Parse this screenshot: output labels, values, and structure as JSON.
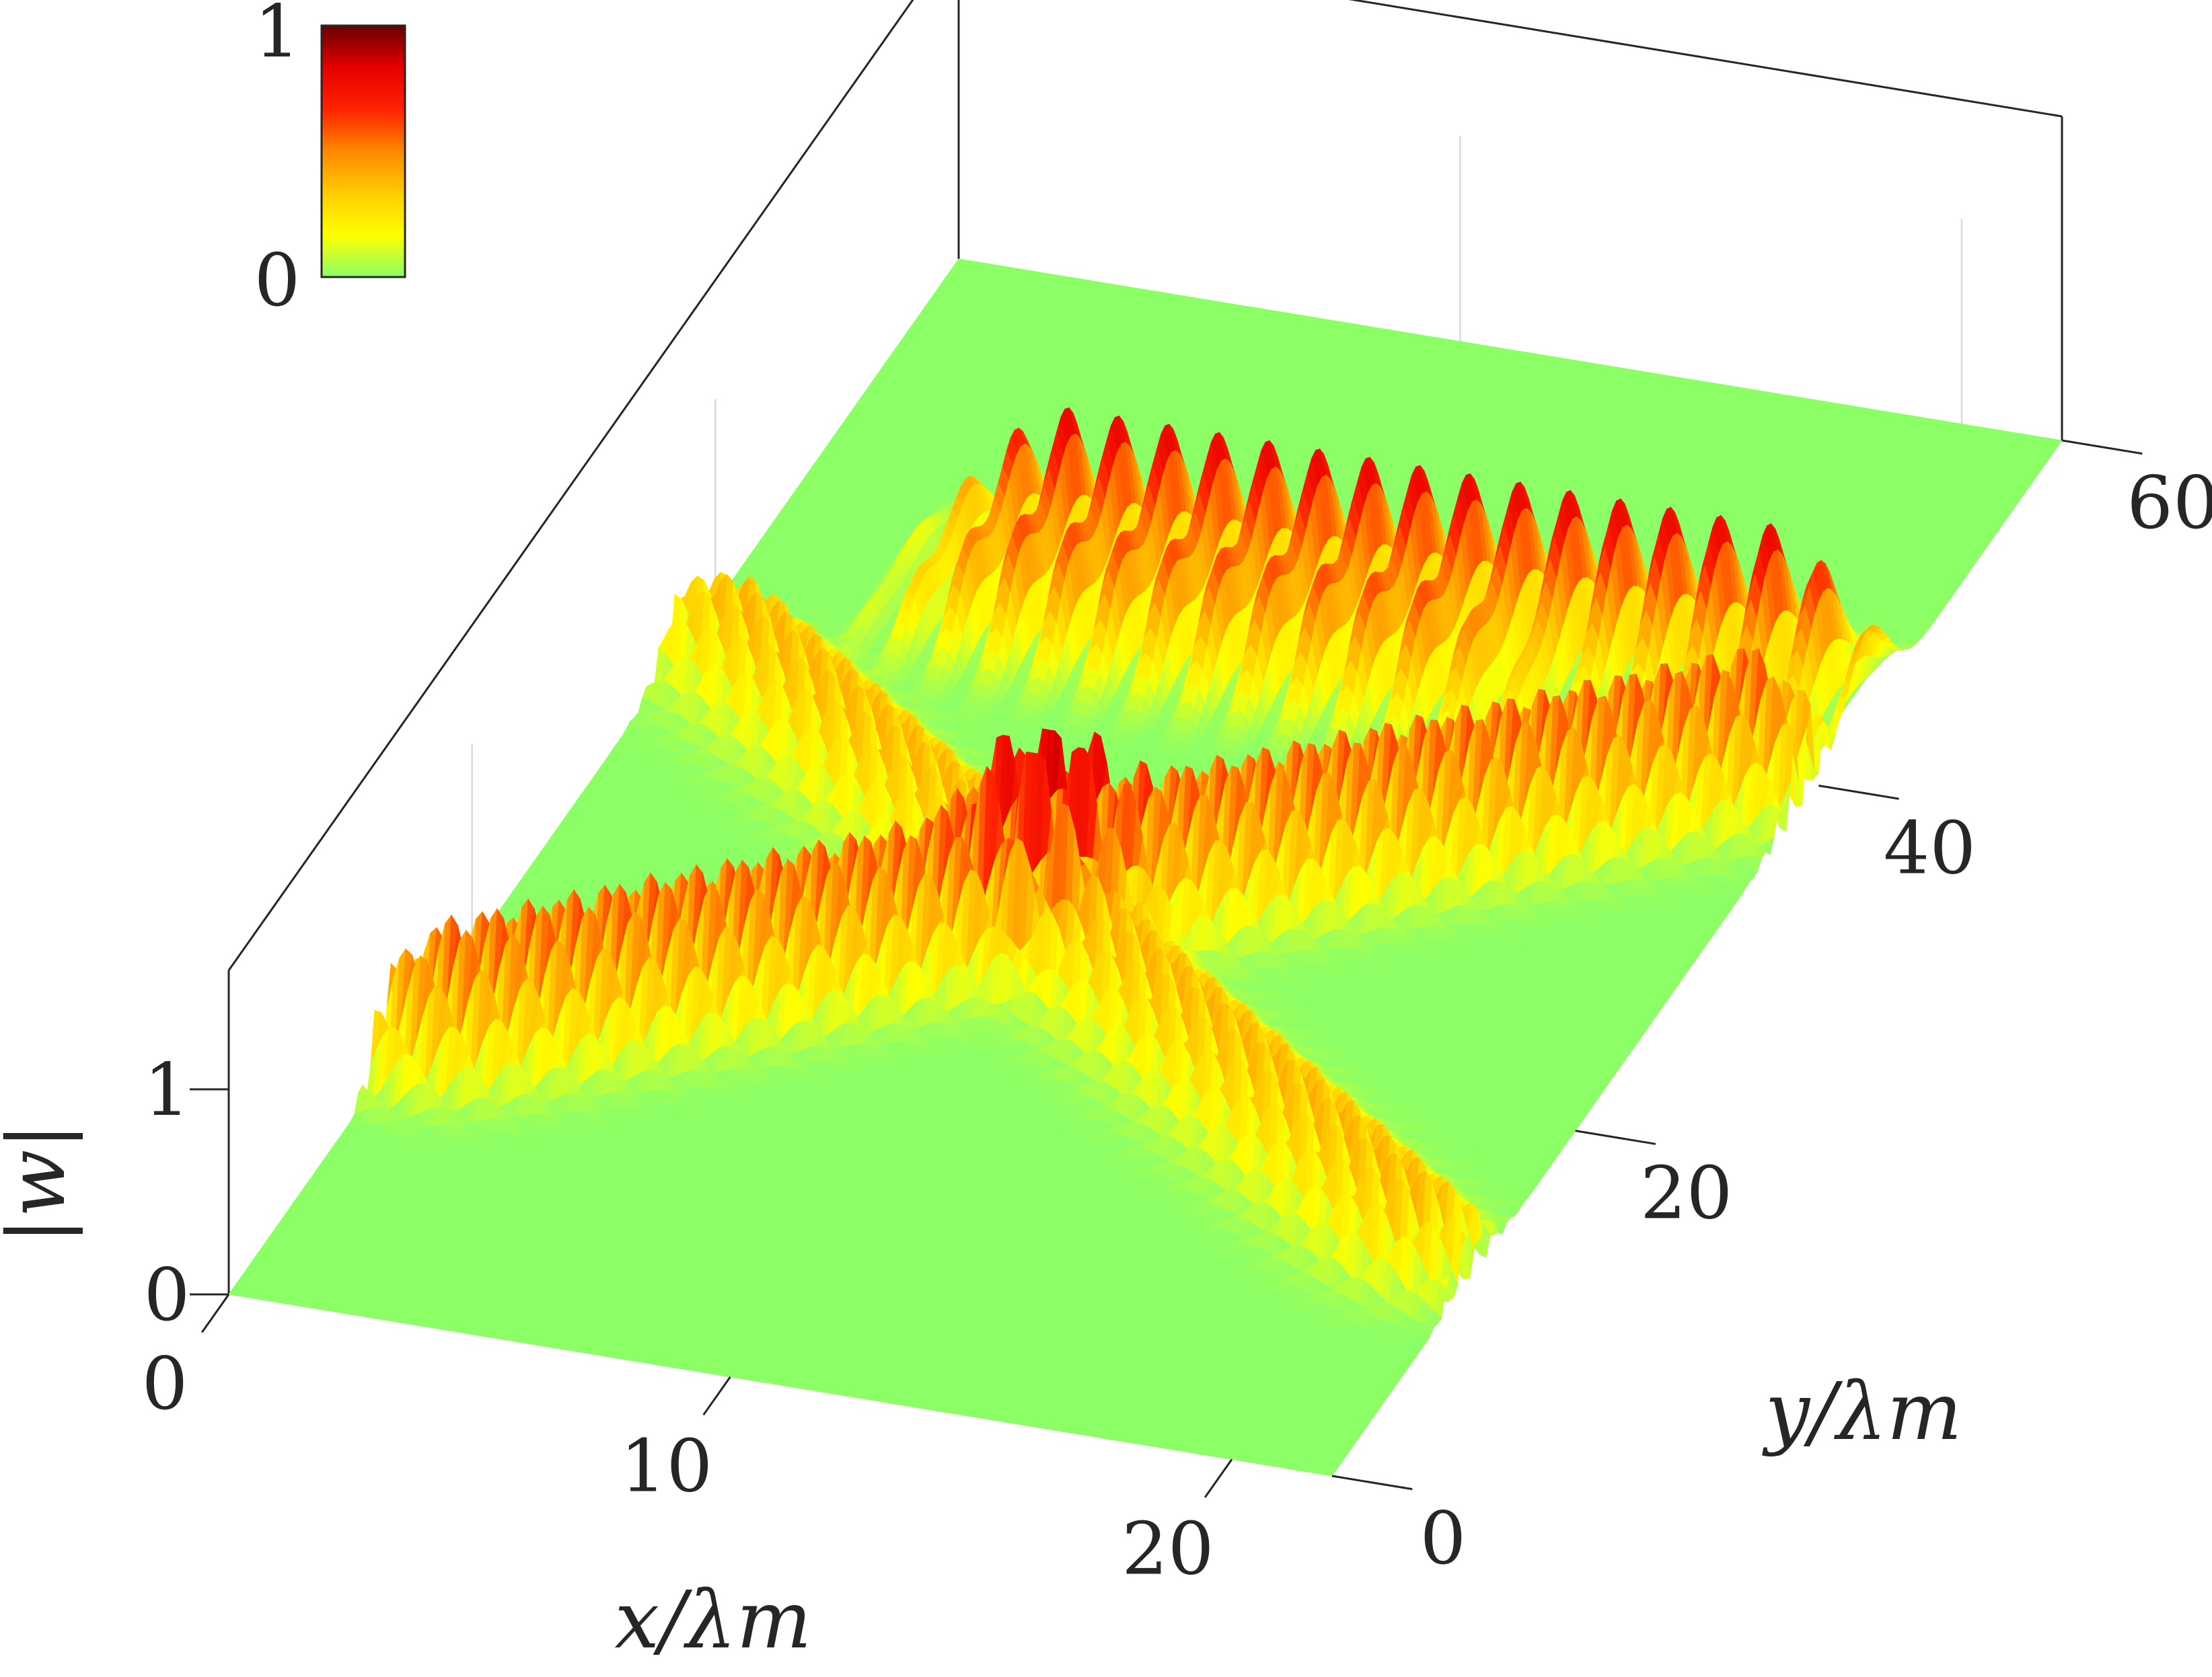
{
  "chart_data": {
    "type": "surface",
    "zlabel": "|w|",
    "xlabel": "x/λm",
    "ylabel": "y/λm",
    "xlim": [
      0,
      22
    ],
    "ylim": [
      0,
      60
    ],
    "zlim": [
      0,
      1
    ],
    "x_ticks": [
      0,
      10,
      20
    ],
    "y_ticks": [
      0,
      20,
      40,
      60
    ],
    "z_ticks": [
      0,
      1
    ],
    "x_tick_labels": [
      "0",
      "10",
      "20"
    ],
    "y_tick_labels": [
      "0",
      "20",
      "40",
      "60"
    ],
    "z_tick_labels": [
      "0",
      "1"
    ],
    "colorbar": {
      "tick_labels": [
        "0",
        "1"
      ],
      "limits": [
        0,
        1
      ],
      "colormap": [
        "#8cff66",
        "#ffff00",
        "#ffcc00",
        "#ff8800",
        "#ff2200",
        "#e60000",
        "#660000"
      ]
    },
    "beams": [
      {
        "x0": 0,
        "y0": 12,
        "x1": 22,
        "y1": 40,
        "peak": 0.75,
        "wavelength": 1.0,
        "width": 1.2
      },
      {
        "x0": 0,
        "y0": 38,
        "x1": 22,
        "y1": 10,
        "peak": 0.5,
        "wavelength": 1.0,
        "width": 1.2
      },
      {
        "x0": 4,
        "y0": 44,
        "x1": 22,
        "y1": 44,
        "peak": 0.85,
        "wavelength": 1.0,
        "width": 1.6
      },
      {
        "x0": 4,
        "y0": 40,
        "x1": 16,
        "y1": 40,
        "peak": 0.6,
        "wavelength": 1.0,
        "width": 1.3
      }
    ],
    "max_value": 1,
    "grid": true
  }
}
